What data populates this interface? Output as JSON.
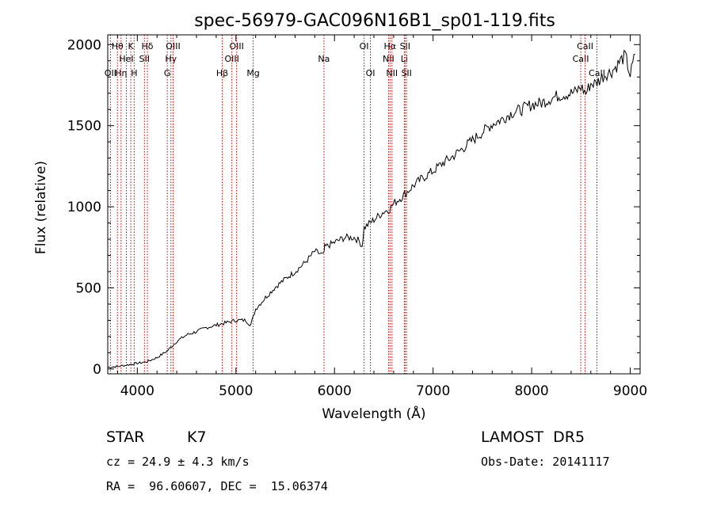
{
  "colors": {
    "axis": "#000000",
    "spectrum": "#000000",
    "line_marker": "#cc0000",
    "background": "#ffffff"
  },
  "chart_data": {
    "type": "line",
    "title": "spec-56979-GAC096N16B1_sp01-119.fits",
    "xlabel": "Wavelength (Å)",
    "ylabel": "Flux (relative)",
    "xlim": [
      3700,
      9100
    ],
    "ylim": [
      -30,
      2060
    ],
    "xticks": [
      4000,
      5000,
      6000,
      7000,
      8000,
      9000
    ],
    "yticks": [
      0,
      500,
      1000,
      1500,
      2000
    ],
    "grid": false,
    "series": [
      {
        "x": [
          3700,
          3800,
          3900,
          4000,
          4100,
          4200,
          4300,
          4400,
          4500,
          4600,
          4700,
          4800,
          4900,
          5000,
          5100,
          5150,
          5200,
          5300,
          5400,
          5500,
          5600,
          5700,
          5800,
          5890,
          5900,
          6000,
          6100,
          6200,
          6250,
          6280,
          6300,
          6400,
          6500,
          6560,
          6600,
          6700,
          6800,
          6900,
          7000,
          7100,
          7200,
          7300,
          7400,
          7500,
          7600,
          7700,
          7800,
          7900,
          8000,
          8100,
          8200,
          8300,
          8400,
          8450,
          8500,
          8550,
          8600,
          8650,
          8700,
          8750,
          8800,
          8850,
          8900,
          8950,
          9000,
          9050
        ],
        "y": [
          10,
          15,
          25,
          35,
          45,
          70,
          110,
          170,
          210,
          230,
          255,
          270,
          285,
          300,
          300,
          270,
          370,
          440,
          505,
          555,
          600,
          655,
          725,
          700,
          750,
          780,
          810,
          810,
          790,
          760,
          870,
          920,
          970,
          985,
          1020,
          1070,
          1130,
          1180,
          1220,
          1270,
          1310,
          1360,
          1410,
          1460,
          1510,
          1540,
          1580,
          1600,
          1630,
          1640,
          1670,
          1690,
          1700,
          1710,
          1740,
          1700,
          1760,
          1760,
          1790,
          1820,
          1830,
          1860,
          1900,
          1930,
          1810,
          1940
        ]
      }
    ],
    "line_markers": [
      {
        "wavelength": 3727,
        "label": "OII",
        "row": 2
      },
      {
        "wavelength": 3798,
        "label": "Hθ",
        "row": 0
      },
      {
        "wavelength": 3835,
        "label": "Hη",
        "row": 2
      },
      {
        "wavelength": 3889,
        "label": "HeI",
        "row": 1
      },
      {
        "wavelength": 3934,
        "label": "K",
        "row": 0
      },
      {
        "wavelength": 3968,
        "label": "H",
        "row": 2
      },
      {
        "wavelength": 4072,
        "label": "SII",
        "row": 1
      },
      {
        "wavelength": 4102,
        "label": "Hδ",
        "row": 0
      },
      {
        "wavelength": 4304,
        "label": "G",
        "row": 2
      },
      {
        "wavelength": 4341,
        "label": "Hγ",
        "row": 1
      },
      {
        "wavelength": 4363,
        "label": "OIII",
        "row": 0
      },
      {
        "wavelength": 4861,
        "label": "Hβ",
        "row": 2
      },
      {
        "wavelength": 4959,
        "label": "OIII",
        "row": 1
      },
      {
        "wavelength": 5007,
        "label": "OIII",
        "row": 0
      },
      {
        "wavelength": 5175,
        "label": "Mg",
        "row": 2
      },
      {
        "wavelength": 5893,
        "label": "Na",
        "row": 1
      },
      {
        "wavelength": 6300,
        "label": "OI",
        "row": 0
      },
      {
        "wavelength": 6364,
        "label": "OI",
        "row": 2
      },
      {
        "wavelength": 6548,
        "label": "NII",
        "row": 1
      },
      {
        "wavelength": 6563,
        "label": "Hα",
        "row": 0
      },
      {
        "wavelength": 6583,
        "label": "NII",
        "row": 2
      },
      {
        "wavelength": 6708,
        "label": "Li",
        "row": 1
      },
      {
        "wavelength": 6716,
        "label": "SII",
        "row": 0
      },
      {
        "wavelength": 6731,
        "label": "SII",
        "row": 2
      },
      {
        "wavelength": 8498,
        "label": "CaII",
        "row": 1
      },
      {
        "wavelength": 8542,
        "label": "CaII",
        "row": 0
      },
      {
        "wavelength": 8662,
        "label": "CaII",
        "row": 2
      }
    ]
  },
  "info": {
    "object_class": "STAR",
    "subclass": "K7",
    "survey": "LAMOST  DR5",
    "redshift": "cz = 24.9 ± 4.3 km/s",
    "obs_date": "Obs-Date: 20141117",
    "coords": "RA =  96.60607, DEC =  15.06374"
  }
}
